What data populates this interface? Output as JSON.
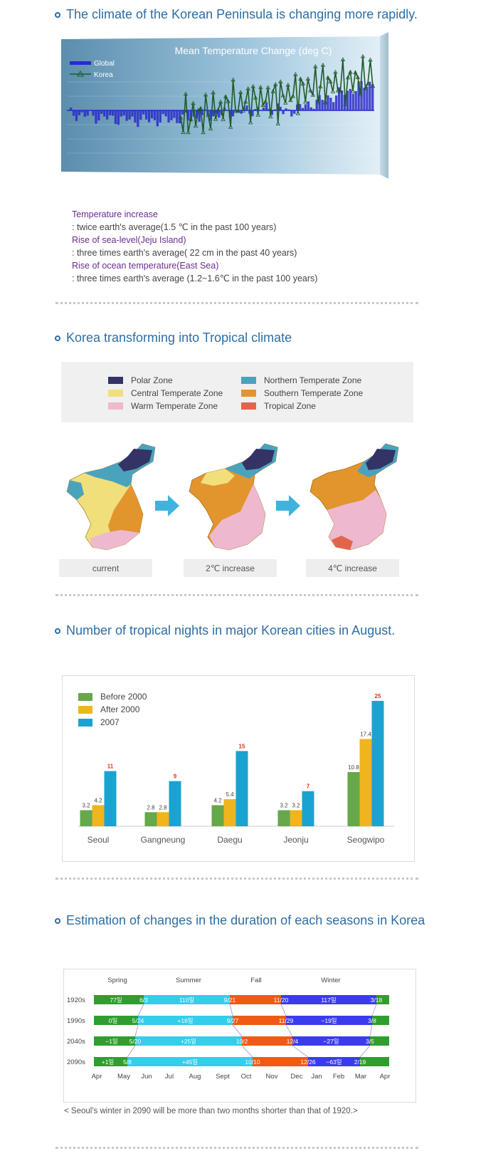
{
  "section1": {
    "heading": "The climate of the Korean Peninsula is changing more rapidly.",
    "chart_title": "Mean Temperature Change (deg C)",
    "legend": [
      "Global",
      "Korea"
    ],
    "facts": [
      {
        "title": "Temperature increase",
        "value": ": twice earth's average(1.5 ℃ in the past 100 years)"
      },
      {
        "title": "Rise of sea-level(Jeju Island)",
        "value": ": three times earth's average( 22 cm in the past 40 years)"
      },
      {
        "title": "Rise of ocean temperature(East Sea)",
        "value": ": three times earth's average (1.2~1.6℃ in the past 100 years)"
      }
    ]
  },
  "section2": {
    "heading": "Korea transforming into Tropical climate",
    "zones": [
      {
        "label": "Polar Zone",
        "color": "#333366"
      },
      {
        "label": "Northern Temperate Zone",
        "color": "#4aa3bd"
      },
      {
        "label": "Central Temperate Zone",
        "color": "#f1df7c"
      },
      {
        "label": "Southern Temperate Zone",
        "color": "#e2952d"
      },
      {
        "label": "Warm Temperate Zone",
        "color": "#eeb9cf"
      },
      {
        "label": "Tropical Zone",
        "color": "#e2654a"
      }
    ],
    "scenarios": [
      "current",
      "2℃ increase",
      "4℃ increase"
    ]
  },
  "section3": {
    "heading": "Number of tropical nights in major Korean cities in August."
  },
  "section4": {
    "heading": "Estimation of changes in the duration of each seasons in Korea",
    "note": "< Seoul's winter in 2090 will be more than two months shorter than that of 1920.>"
  },
  "chart_data": [
    {
      "type": "line",
      "title": "Mean Temperature Change (deg C)",
      "series": [
        {
          "name": "Global",
          "style": "bar"
        },
        {
          "name": "Korea",
          "style": "line"
        }
      ]
    },
    {
      "type": "bar",
      "categories": [
        "Seoul",
        "Gangneung",
        "Daegu",
        "Jeonju",
        "Seogwipo"
      ],
      "series": [
        {
          "name": "Before 2000",
          "color": "#66a84a",
          "values": [
            3.2,
            2.8,
            4.2,
            3.2,
            10.8
          ]
        },
        {
          "name": "After 2000",
          "color": "#f0b41c",
          "values": [
            4.2,
            2.8,
            5.4,
            3.2,
            17.4
          ]
        },
        {
          "name": "2007",
          "color": "#1aa3d1",
          "values": [
            11,
            9,
            15,
            7,
            25
          ]
        }
      ],
      "ylim": [
        0,
        25
      ]
    },
    {
      "type": "bar",
      "seasons": [
        {
          "name": "Spring",
          "color": "#2f9e2f"
        },
        {
          "name": "Summer",
          "color": "#34cdea"
        },
        {
          "name": "Fall",
          "color": "#f05a14"
        },
        {
          "name": "Winter",
          "color": "#3b3bee"
        }
      ],
      "months": [
        "Apr",
        "May",
        "Jun",
        "Jul",
        "Aug",
        "Sept",
        "Oct",
        "Nov",
        "Dec",
        "Jan",
        "Feb",
        "Mar",
        "Apr"
      ],
      "rows": [
        {
          "year": "1920s",
          "spring_days": "77일",
          "summer_start": "6/3",
          "summer_days": "110일",
          "fall_start": "9/21",
          "winter_start": "11/20",
          "winter_days": "117일",
          "spring_start": "3/18"
        },
        {
          "year": "1990s",
          "spring_days": "0일",
          "summer_start": "5/24",
          "summer_days": "+16일",
          "fall_start": "9/27",
          "winter_start": "11/29",
          "winter_days": "−19일",
          "spring_start": "3/8"
        },
        {
          "year": "2040s",
          "spring_days": "−1일",
          "summer_start": "5/20",
          "summer_days": "+25일",
          "fall_start": "10/2",
          "winter_start": "12/4",
          "winter_days": "−27일",
          "spring_start": "3/5"
        },
        {
          "year": "2090s",
          "spring_days": "+1일",
          "summer_start": "5/8",
          "summer_days": "+45일",
          "fall_start": "10/10",
          "winter_start": "12/26",
          "winter_days": "−63일",
          "spring_start": "2/19"
        }
      ]
    }
  ]
}
